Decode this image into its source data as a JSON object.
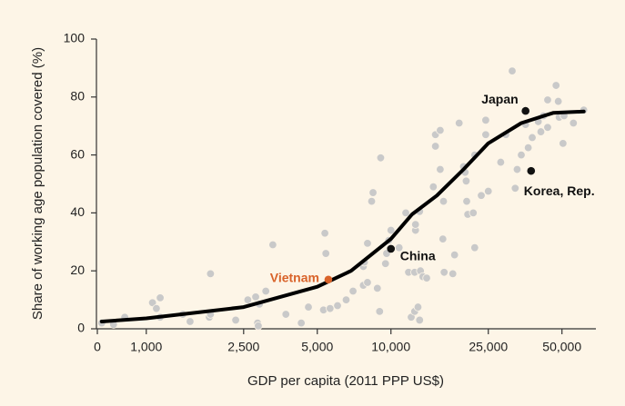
{
  "chart_data": {
    "type": "scatter",
    "xlabel": "GDP per capita (2011 PPP US$)",
    "ylabel": "Share of working age population covered (%)",
    "xscale": "symlog",
    "linthresh": 1000,
    "linscale": 0.2,
    "xlim": [
      0,
      70000
    ],
    "xticks": [
      0,
      {
        "value": 1000,
        "label": "1,000"
      },
      {
        "value": 2500,
        "label": "2,500"
      },
      {
        "value": 5000,
        "label": "5,000"
      },
      {
        "value": 10000,
        "label": "10,000"
      },
      {
        "value": 25000,
        "label": "25,000"
      },
      {
        "value": 50000,
        "label": "50,000"
      }
    ],
    "ylim": [
      0,
      100
    ],
    "yticks": [
      0,
      20,
      40,
      60,
      80,
      100
    ],
    "points": {
      "color": "#c9c9c9",
      "x": [
        90,
        330,
        560,
        1060,
        1140,
        1100,
        1140,
        1410,
        1510,
        1810,
        1830,
        1830,
        2320,
        2600,
        2800,
        2900,
        3080,
        3290,
        2850,
        2870,
        3720,
        4300,
        4600,
        5300,
        5370,
        5420,
        5640,
        6050,
        6560,
        7000,
        7710,
        7790,
        8020,
        8340,
        8450,
        9080,
        7710,
        8020,
        8800,
        8990,
        9500,
        9600,
        9800,
        10000,
        10800,
        11500,
        11800,
        12100,
        12500,
        12900,
        13100,
        12500,
        13200,
        13500,
        12600,
        13100,
        12600,
        14000,
        15200,
        15900,
        15900,
        15200,
        14900,
        16400,
        16300,
        16500,
        17900,
        18200,
        19000,
        19800,
        20100,
        20300,
        20400,
        20600,
        21700,
        22000,
        22000,
        23400,
        24400,
        24400,
        25000,
        28100,
        29500,
        31300,
        32200,
        32800,
        34100,
        35500,
        36400,
        37800,
        40000,
        42000,
        43700,
        47300,
        48300,
        48700,
        51000,
        50500,
        55700,
        61400,
        41000,
        43700
      ],
      "y": [
        2,
        1.5,
        4,
        9,
        10.7,
        7,
        4,
        5,
        2.5,
        4,
        19,
        5,
        3,
        10,
        11,
        8.5,
        13,
        29,
        2,
        1,
        5,
        2,
        7.5,
        6.5,
        33,
        26,
        7,
        8,
        10,
        13,
        21.5,
        23,
        29.5,
        44,
        47,
        59,
        15,
        16,
        14,
        6,
        22.5,
        26,
        30.5,
        34,
        28,
        40,
        19.5,
        4,
        6,
        7.5,
        3,
        19.5,
        20,
        18,
        34,
        40.5,
        36,
        17.5,
        67,
        68.5,
        55,
        63,
        49,
        44,
        31,
        19.5,
        19,
        25.5,
        71,
        56,
        54,
        51,
        44,
        39.5,
        40,
        28,
        60,
        46,
        72,
        67,
        47.5,
        57.5,
        67,
        89,
        48.5,
        55,
        60,
        70.5,
        62.5,
        66,
        71.5,
        73.5,
        79,
        84,
        78.5,
        73,
        73.5,
        64,
        71,
        75.5,
        68,
        69.5
      ]
    },
    "curve": {
      "color": "#000000",
      "x": [
        90,
        1000,
        2500,
        5000,
        6870,
        10000,
        12200,
        15400,
        19800,
        25000,
        34100,
        46000,
        61400
      ],
      "y": [
        2.5,
        3.6,
        7.5,
        14.5,
        20,
        31,
        39.5,
        46,
        55,
        64,
        71,
        74.5,
        75
      ]
    },
    "highlights": [
      {
        "label": "Japan",
        "x": 35500,
        "y": 75.2,
        "color": "#111111"
      },
      {
        "label": "Korea, Rep.",
        "x": 37400,
        "y": 54.5,
        "color": "#111111"
      },
      {
        "label": "China",
        "x": 10000,
        "y": 27.6,
        "color": "#111111"
      },
      {
        "label": "Vietnam",
        "x": 5550,
        "y": 17,
        "color": "#d9632a"
      }
    ]
  }
}
